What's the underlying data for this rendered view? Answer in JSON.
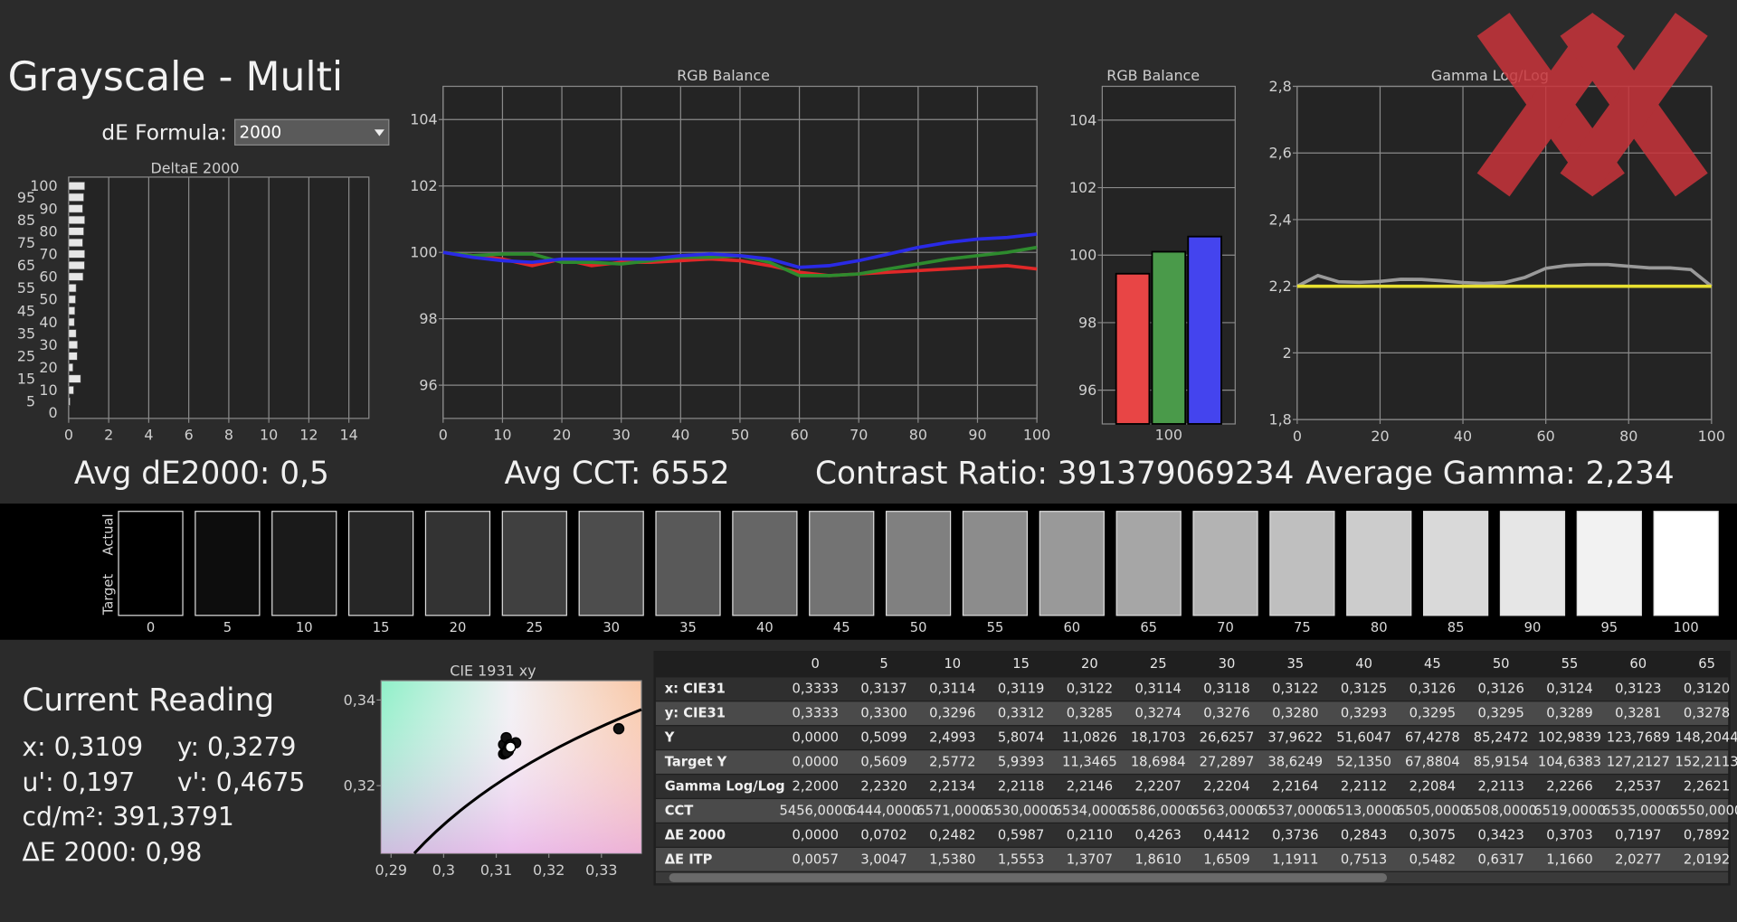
{
  "header": {
    "title": "Grayscale - Multi",
    "formula_label": "dE Formula:",
    "formula_value": "2000"
  },
  "stats": {
    "avg_de": "Avg dE2000: 0,5",
    "avg_cct": "Avg CCT: 6552",
    "contrast": "Contrast Ratio: 391379069234",
    "avg_gamma": "Average Gamma: 2,234"
  },
  "chart_data": [
    {
      "type": "hbar",
      "title": "DeltaE 2000",
      "categories": [
        0,
        5,
        10,
        15,
        20,
        25,
        30,
        35,
        40,
        45,
        50,
        55,
        60,
        65,
        70,
        75,
        80,
        85,
        90,
        95,
        100
      ],
      "values": [
        0,
        0.0702,
        0.2482,
        0.5987,
        0.211,
        0.4263,
        0.4412,
        0.3736,
        0.2843,
        0.3075,
        0.3423,
        0.3703,
        0.7197,
        0.7892,
        0.8,
        0.7,
        0.75,
        0.8,
        0.7,
        0.75,
        0.8
      ],
      "color": "#e6e6e6",
      "xlim": [
        0,
        15
      ],
      "xticks": [
        0,
        2,
        4,
        6,
        8,
        10,
        12,
        14
      ],
      "grid": true
    },
    {
      "type": "line",
      "title": "RGB Balance",
      "x": [
        0,
        5,
        10,
        15,
        20,
        25,
        30,
        35,
        40,
        45,
        50,
        55,
        60,
        65,
        70,
        75,
        80,
        85,
        90,
        95,
        100
      ],
      "series": [
        {
          "color": "#e02828",
          "values": [
            100,
            99.9,
            99.8,
            99.6,
            99.8,
            99.6,
            99.7,
            99.7,
            99.75,
            99.8,
            99.75,
            99.6,
            99.4,
            99.3,
            99.35,
            99.4,
            99.45,
            99.5,
            99.55,
            99.6,
            99.5
          ]
        },
        {
          "color": "#2e8b2e",
          "values": [
            100,
            99.9,
            99.95,
            99.95,
            99.7,
            99.7,
            99.65,
            99.75,
            99.85,
            99.85,
            99.9,
            99.7,
            99.3,
            99.3,
            99.35,
            99.5,
            99.65,
            99.8,
            99.9,
            100,
            100.15
          ]
        },
        {
          "color": "#2a2ae6",
          "values": [
            100,
            99.85,
            99.75,
            99.7,
            99.8,
            99.8,
            99.8,
            99.8,
            99.9,
            99.95,
            99.9,
            99.8,
            99.55,
            99.6,
            99.75,
            99.95,
            100.15,
            100.3,
            100.4,
            100.45,
            100.55
          ]
        }
      ],
      "xlim": [
        0,
        100
      ],
      "xticks": [
        0,
        10,
        20,
        30,
        40,
        50,
        60,
        70,
        80,
        90,
        100
      ],
      "ylim": [
        95,
        105
      ],
      "yticks": [
        96,
        98,
        100,
        102,
        104
      ],
      "grid": true
    },
    {
      "type": "bar",
      "title": "RGB Balance",
      "categories": [
        100
      ],
      "series": [
        {
          "color": "#e84545",
          "values": [
            99.45
          ]
        },
        {
          "color": "#4a9a4a",
          "values": [
            100.1
          ]
        },
        {
          "color": "#4444ee",
          "values": [
            100.55
          ]
        }
      ],
      "ylim": [
        95,
        105
      ],
      "yticks": [
        96,
        98,
        100,
        102,
        104
      ],
      "grid": true
    },
    {
      "type": "line",
      "title": "Gamma Log/Log",
      "x": [
        0,
        5,
        10,
        15,
        20,
        25,
        30,
        35,
        40,
        45,
        50,
        55,
        60,
        65,
        70,
        75,
        80,
        85,
        90,
        95,
        100
      ],
      "series": [
        {
          "color": "#9a9a9a",
          "values": [
            2.2,
            2.232,
            2.2134,
            2.2118,
            2.2146,
            2.2207,
            2.2204,
            2.2164,
            2.2112,
            2.2084,
            2.2113,
            2.2266,
            2.2537,
            2.2621,
            2.265,
            2.265,
            2.26,
            2.255,
            2.255,
            2.25,
            2.2
          ]
        },
        {
          "color": "#e8e030",
          "values": [
            2.2,
            2.2,
            2.2,
            2.2,
            2.2,
            2.2,
            2.2,
            2.2,
            2.2,
            2.2,
            2.2,
            2.2,
            2.2,
            2.2,
            2.2,
            2.2,
            2.2,
            2.2,
            2.2,
            2.2,
            2.2
          ]
        }
      ],
      "xlim": [
        0,
        100
      ],
      "xticks": [
        0,
        20,
        40,
        60,
        80,
        100
      ],
      "ylim": [
        1.8,
        2.8
      ],
      "yticks": [
        {
          "value": 1.8,
          "label": "1,8"
        },
        2,
        {
          "value": 2.2,
          "label": "2,2"
        },
        {
          "value": 2.4,
          "label": "2,4"
        },
        {
          "value": 2.6,
          "label": "2,6"
        },
        {
          "value": 2.8,
          "label": "2,8"
        }
      ],
      "grid": true
    },
    {
      "type": "scatter",
      "title": "CIE 1931 xy",
      "series": [
        {
          "color": "#111111",
          "x": [
            0.3333,
            0.3137,
            0.3114,
            0.3119,
            0.3122,
            0.3114,
            0.3118,
            0.3122,
            0.3125,
            0.3126,
            0.3126,
            0.3124,
            0.3123,
            0.312
          ],
          "values": [
            0.3333,
            0.33,
            0.3296,
            0.3312,
            0.3285,
            0.3274,
            0.3276,
            0.328,
            0.3293,
            0.3295,
            0.3295,
            0.3289,
            0.3281,
            0.3278
          ]
        },
        {
          "color": "#ffffff",
          "x": [
            0.3127
          ],
          "values": [
            0.329
          ]
        }
      ],
      "xlim": [
        0.2881,
        0.3376
      ],
      "xticks": [
        {
          "value": 0.29,
          "label": "0,29"
        },
        {
          "value": 0.3,
          "label": "0,3"
        },
        {
          "value": 0.31,
          "label": "0,31"
        },
        {
          "value": 0.32,
          "label": "0,32"
        },
        {
          "value": 0.33,
          "label": "0,33"
        }
      ],
      "ylim": [
        0.3042,
        0.3445
      ],
      "yticks": [
        {
          "value": 0.32,
          "label": "0,32"
        },
        {
          "value": 0.34,
          "label": "0,34"
        }
      ]
    }
  ],
  "swatches": {
    "actual_label": "Actual",
    "target_label": "Target",
    "levels": [
      0,
      5,
      10,
      15,
      20,
      25,
      30,
      35,
      40,
      45,
      50,
      55,
      60,
      65,
      70,
      75,
      80,
      85,
      90,
      95,
      100
    ]
  },
  "current_reading": {
    "title": "Current Reading",
    "x": "x: 0,3109",
    "y": "y: 0,3279",
    "u": "u': 0,197",
    "v": "v': 0,4675",
    "luminance": "cd/m²: 391,3791",
    "de": "ΔE 2000: 0,98"
  },
  "table": {
    "columns": [
      "0",
      "5",
      "10",
      "15",
      "20",
      "25",
      "30",
      "35",
      "40",
      "45",
      "50",
      "55",
      "60",
      "65"
    ],
    "rows": [
      {
        "label": "x: CIE31",
        "cells": [
          "0,3333",
          "0,3137",
          "0,3114",
          "0,3119",
          "0,3122",
          "0,3114",
          "0,3118",
          "0,3122",
          "0,3125",
          "0,3126",
          "0,3126",
          "0,3124",
          "0,3123",
          "0,3120"
        ]
      },
      {
        "label": "y: CIE31",
        "cells": [
          "0,3333",
          "0,3300",
          "0,3296",
          "0,3312",
          "0,3285",
          "0,3274",
          "0,3276",
          "0,3280",
          "0,3293",
          "0,3295",
          "0,3295",
          "0,3289",
          "0,3281",
          "0,3278"
        ]
      },
      {
        "label": "Y",
        "cells": [
          "0,0000",
          "0,5099",
          "2,4993",
          "5,8074",
          "11,0826",
          "18,1703",
          "26,6257",
          "37,9622",
          "51,6047",
          "67,4278",
          "85,2472",
          "102,9839",
          "123,7689",
          "148,2044"
        ]
      },
      {
        "label": "Target Y",
        "cells": [
          "0,0000",
          "0,5609",
          "2,5772",
          "5,9393",
          "11,3465",
          "18,6984",
          "27,2897",
          "38,6249",
          "52,1350",
          "67,8804",
          "85,9154",
          "104,6383",
          "127,2127",
          "152,2113"
        ]
      },
      {
        "label": "Gamma Log/Log",
        "cells": [
          "2,2000",
          "2,2320",
          "2,2134",
          "2,2118",
          "2,2146",
          "2,2207",
          "2,2204",
          "2,2164",
          "2,2112",
          "2,2084",
          "2,2113",
          "2,2266",
          "2,2537",
          "2,2621"
        ]
      },
      {
        "label": "CCT",
        "cells": [
          "5456,0000",
          "6444,0000",
          "6571,0000",
          "6530,0000",
          "6534,0000",
          "6586,0000",
          "6563,0000",
          "6537,0000",
          "6513,0000",
          "6505,0000",
          "6508,0000",
          "6519,0000",
          "6535,0000",
          "6550,0000"
        ]
      },
      {
        "label": "ΔE 2000",
        "cells": [
          "0,0000",
          "0,0702",
          "0,2482",
          "0,5987",
          "0,2110",
          "0,4263",
          "0,4412",
          "0,3736",
          "0,2843",
          "0,3075",
          "0,3423",
          "0,3703",
          "0,7197",
          "0,7892"
        ]
      },
      {
        "label": "ΔE ITP",
        "cells": [
          "0,0057",
          "3,0047",
          "1,5380",
          "1,5553",
          "1,3707",
          "1,8610",
          "1,6509",
          "1,1911",
          "0,7513",
          "0,5482",
          "0,6317",
          "1,1660",
          "2,0277",
          "2,0192"
        ]
      }
    ]
  }
}
